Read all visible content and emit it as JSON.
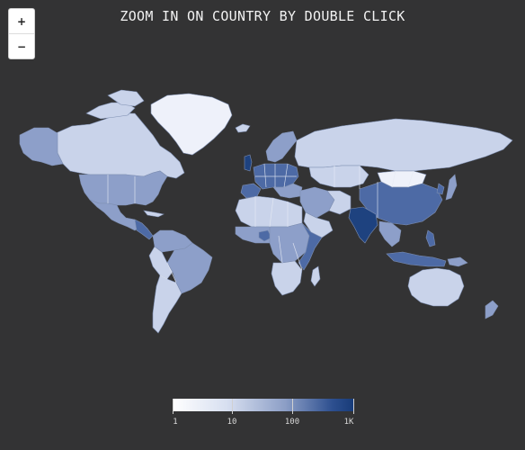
{
  "title": "ZOOM IN ON COUNTRY BY DOUBLE CLICK",
  "zoom": {
    "in_label": "+",
    "out_label": "−"
  },
  "legend": {
    "ticks": [
      "1",
      "10",
      "100",
      "1K"
    ],
    "colors": [
      "#ffffff",
      "#d7dff0",
      "#8c9ec6",
      "#2d4f8f",
      "#173b78"
    ]
  },
  "colors": {
    "background": "#333334",
    "very_light": "#eef1fa",
    "light": "#c9d3ea",
    "medium": "#8d9fc9",
    "dark": "#4d6aa5",
    "darkest": "#1e427f"
  }
}
